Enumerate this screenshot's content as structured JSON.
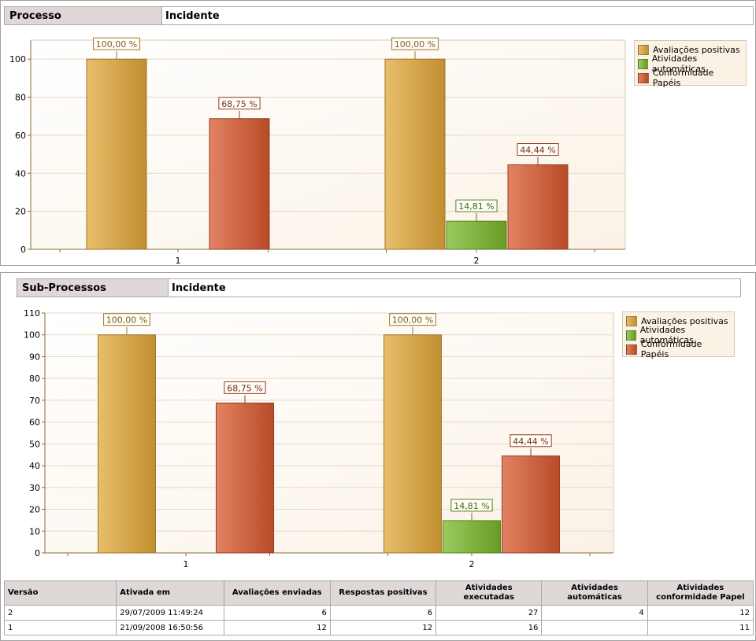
{
  "colors": {
    "positivas": "#e2a83a",
    "automaticas": "#7ab82a",
    "papeis": "#d8582f",
    "plot_bg": "#fbf2e6",
    "header_bg": "#e0d7d7"
  },
  "processo": {
    "label": "Processo",
    "value": "Incidente"
  },
  "subprocessos": {
    "label": "Sub-Processos",
    "value": "Incidente"
  },
  "legend": [
    {
      "name": "Avaliações positivas",
      "color": "#e2a83a"
    },
    {
      "name": "Atividades automáticas",
      "color": "#7ab82a"
    },
    {
      "name": "Conformidade Papéis",
      "color": "#d8582f"
    }
  ],
  "chart_data": [
    {
      "type": "bar",
      "categories": [
        "1",
        "2"
      ],
      "series": [
        {
          "name": "Avaliações positivas",
          "values": [
            100,
            100
          ],
          "labels": [
            "100,00 %",
            "100,00 %"
          ]
        },
        {
          "name": "Atividades automáticas",
          "values": [
            0,
            14.81
          ],
          "labels": [
            "",
            "14,81 %"
          ]
        },
        {
          "name": "Conformidade Papéis",
          "values": [
            68.75,
            44.44
          ],
          "labels": [
            "68,75 %",
            "44,44 %"
          ]
        }
      ],
      "ylim": [
        0,
        110
      ],
      "yticks": [
        "0",
        "20",
        "40",
        "60",
        "80",
        "100"
      ],
      "grid": true,
      "legend_position": "top-right"
    },
    {
      "type": "bar",
      "categories": [
        "1",
        "2"
      ],
      "series": [
        {
          "name": "Avaliações positivas",
          "values": [
            100,
            100
          ],
          "labels": [
            "100,00 %",
            "100,00 %"
          ]
        },
        {
          "name": "Atividades automáticas",
          "values": [
            0,
            14.81
          ],
          "labels": [
            "",
            "14,81 %"
          ]
        },
        {
          "name": "Conformidade Papéis",
          "values": [
            68.75,
            44.44
          ],
          "labels": [
            "68,75 %",
            "44,44 %"
          ]
        }
      ],
      "ylim": [
        0,
        110
      ],
      "yticks": [
        "0",
        "10",
        "20",
        "30",
        "40",
        "50",
        "60",
        "70",
        "80",
        "90",
        "100",
        "110"
      ],
      "grid": true,
      "legend_position": "top-right"
    }
  ],
  "table": {
    "headers": [
      "Versão",
      "Ativada em",
      "Avaliações enviadas",
      "Respostas positivas",
      "Atividades executadas",
      "Atividades automáticas",
      "Atividades conformidade Papel"
    ],
    "rows": [
      [
        "2",
        "29/07/2009 11:49:24",
        "6",
        "6",
        "27",
        "4",
        "12"
      ],
      [
        "1",
        "21/09/2008 16:50:56",
        "12",
        "12",
        "16",
        "",
        "11"
      ]
    ]
  }
}
